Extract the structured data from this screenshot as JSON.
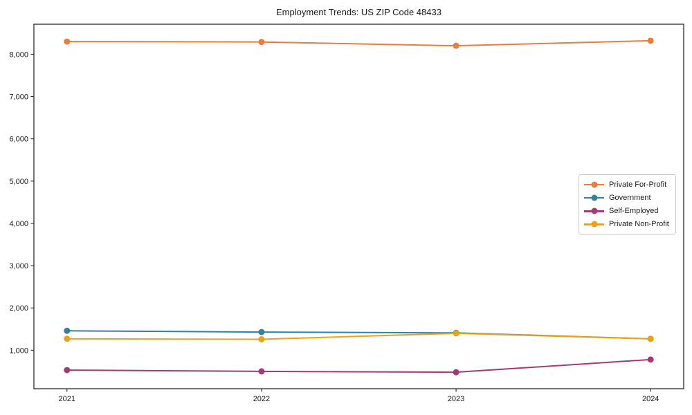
{
  "chart_data": {
    "type": "line",
    "title": "Employment Trends: US ZIP Code 48433",
    "xlabel": "",
    "ylabel": "",
    "x": [
      2021,
      2022,
      2023,
      2024
    ],
    "x_tick_labels": [
      "2021",
      "2022",
      "2023",
      "2024"
    ],
    "series": [
      {
        "name": "Private For-Profit",
        "color": "#e87d3e",
        "values": [
          8300,
          8290,
          8200,
          8320
        ]
      },
      {
        "name": "Government",
        "color": "#35809f",
        "values": [
          1460,
          1430,
          1410,
          1270
        ]
      },
      {
        "name": "Self-Employed",
        "color": "#a23a76",
        "values": [
          530,
          500,
          480,
          780
        ]
      },
      {
        "name": "Private Non-Profit",
        "color": "#f0a10e",
        "values": [
          1270,
          1260,
          1400,
          1270
        ]
      }
    ],
    "y_ticks": [
      {
        "value": 1000,
        "label": "1,000"
      },
      {
        "value": 2000,
        "label": "2,000"
      },
      {
        "value": 3000,
        "label": "3,000"
      },
      {
        "value": 4000,
        "label": "4,000"
      },
      {
        "value": 5000,
        "label": "5,000"
      },
      {
        "value": 6000,
        "label": "6,000"
      },
      {
        "value": 7000,
        "label": "7,000"
      },
      {
        "value": 8000,
        "label": "8,000"
      }
    ],
    "xlim": [
      2020.83,
      2024.17
    ],
    "ylim": [
      90,
      8710
    ],
    "grid": false,
    "marker": "circle",
    "legend_position": "right-center",
    "axis_color": "#1a1a1a",
    "background": "#ffffff"
  }
}
